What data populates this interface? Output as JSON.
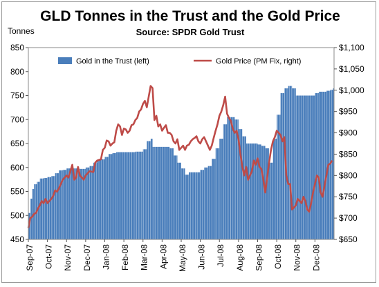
{
  "chart_data": {
    "type": "bar+line",
    "title": "GLD Tonnes in the Trust and the Gold Price",
    "subtitle": "Source: SPDR Gold Trust",
    "y_left_label": "Tonnes",
    "y_left_lim": [
      450,
      850
    ],
    "y_left_ticks": [
      "450",
      "500",
      "550",
      "600",
      "650",
      "700",
      "750",
      "800",
      "850"
    ],
    "y_right_lim": [
      650,
      1100
    ],
    "y_right_ticks": [
      "$650",
      "$700",
      "$750",
      "$800",
      "$850",
      "$900",
      "$950",
      "$1,000",
      "$1,050",
      "$1,100"
    ],
    "x_ticks": [
      "Sep-07",
      "Oct-07",
      "Nov-07",
      "Dec-07",
      "Jan-08",
      "Feb-08",
      "Mar-08",
      "Apr-08",
      "May-08",
      "Jun-08",
      "Jul-08",
      "Aug-08",
      "Sep-08",
      "Oct-08",
      "Nov-08",
      "Dec-08"
    ],
    "x_range": [
      0,
      16.0
    ],
    "legend": {
      "position": "top",
      "items": [
        "Gold in the Trust (left)",
        "Gold Price (PM Fix, right)"
      ]
    },
    "grid": false,
    "colors": {
      "bars": "#4a7ebb",
      "line": "#be4b48"
    },
    "series": [
      {
        "name": "Gold in the Trust (left)",
        "axis": "left",
        "type": "bar",
        "points": [
          [
            0.0,
            505
          ],
          [
            0.1,
            535
          ],
          [
            0.2,
            555
          ],
          [
            0.3,
            565
          ],
          [
            0.45,
            570
          ],
          [
            0.6,
            577
          ],
          [
            0.8,
            578
          ],
          [
            1.0,
            580
          ],
          [
            1.2,
            582
          ],
          [
            1.4,
            588
          ],
          [
            1.6,
            594
          ],
          [
            1.8,
            595
          ],
          [
            2.0,
            598
          ],
          [
            2.2,
            598
          ],
          [
            2.4,
            598
          ],
          [
            2.6,
            597
          ],
          [
            2.8,
            597
          ],
          [
            3.0,
            600
          ],
          [
            3.2,
            603
          ],
          [
            3.4,
            610
          ],
          [
            3.6,
            616
          ],
          [
            3.8,
            617
          ],
          [
            4.0,
            622
          ],
          [
            4.2,
            628
          ],
          [
            4.4,
            630
          ],
          [
            4.6,
            632
          ],
          [
            4.8,
            632
          ],
          [
            5.0,
            632
          ],
          [
            5.2,
            632
          ],
          [
            5.4,
            632
          ],
          [
            5.6,
            633
          ],
          [
            5.8,
            633
          ],
          [
            6.0,
            638
          ],
          [
            6.2,
            655
          ],
          [
            6.4,
            660
          ],
          [
            6.5,
            643
          ],
          [
            6.6,
            643
          ],
          [
            6.8,
            643
          ],
          [
            7.0,
            643
          ],
          [
            7.2,
            643
          ],
          [
            7.4,
            640
          ],
          [
            7.6,
            625
          ],
          [
            7.8,
            610
          ],
          [
            8.0,
            598
          ],
          [
            8.2,
            585
          ],
          [
            8.4,
            590
          ],
          [
            8.6,
            590
          ],
          [
            8.8,
            590
          ],
          [
            9.0,
            595
          ],
          [
            9.2,
            600
          ],
          [
            9.4,
            603
          ],
          [
            9.6,
            618
          ],
          [
            9.8,
            640
          ],
          [
            10.0,
            660
          ],
          [
            10.2,
            690
          ],
          [
            10.4,
            705
          ],
          [
            10.6,
            705
          ],
          [
            10.8,
            700
          ],
          [
            11.0,
            680
          ],
          [
            11.2,
            665
          ],
          [
            11.4,
            650
          ],
          [
            11.6,
            650
          ],
          [
            11.8,
            650
          ],
          [
            12.0,
            648
          ],
          [
            12.2,
            645
          ],
          [
            12.4,
            640
          ],
          [
            12.6,
            610
          ],
          [
            12.8,
            660
          ],
          [
            13.0,
            710
          ],
          [
            13.2,
            755
          ],
          [
            13.4,
            765
          ],
          [
            13.6,
            770
          ],
          [
            13.8,
            765
          ],
          [
            14.0,
            750
          ],
          [
            14.2,
            750
          ],
          [
            14.4,
            750
          ],
          [
            14.6,
            750
          ],
          [
            14.8,
            750
          ],
          [
            15.0,
            755
          ],
          [
            15.2,
            758
          ],
          [
            15.4,
            758
          ],
          [
            15.6,
            760
          ],
          [
            15.8,
            762
          ],
          [
            15.95,
            765
          ]
        ]
      },
      {
        "name": "Gold Price (PM Fix, right)",
        "axis": "right",
        "type": "line",
        "points": [
          [
            0.0,
            677
          ],
          [
            0.1,
            700
          ],
          [
            0.2,
            703
          ],
          [
            0.3,
            710
          ],
          [
            0.4,
            712
          ],
          [
            0.5,
            722
          ],
          [
            0.6,
            730
          ],
          [
            0.7,
            740
          ],
          [
            0.8,
            735
          ],
          [
            0.9,
            745
          ],
          [
            1.0,
            735
          ],
          [
            1.1,
            740
          ],
          [
            1.2,
            745
          ],
          [
            1.3,
            752
          ],
          [
            1.4,
            765
          ],
          [
            1.5,
            762
          ],
          [
            1.6,
            770
          ],
          [
            1.7,
            780
          ],
          [
            1.8,
            790
          ],
          [
            1.9,
            795
          ],
          [
            2.0,
            800
          ],
          [
            2.1,
            795
          ],
          [
            2.2,
            810
          ],
          [
            2.3,
            825
          ],
          [
            2.4,
            790
          ],
          [
            2.5,
            795
          ],
          [
            2.6,
            820
          ],
          [
            2.7,
            800
          ],
          [
            2.8,
            795
          ],
          [
            2.9,
            790
          ],
          [
            3.0,
            800
          ],
          [
            3.2,
            810
          ],
          [
            3.4,
            808
          ],
          [
            3.5,
            830
          ],
          [
            3.6,
            835
          ],
          [
            3.8,
            838
          ],
          [
            3.9,
            860
          ],
          [
            4.0,
            865
          ],
          [
            4.1,
            882
          ],
          [
            4.2,
            880
          ],
          [
            4.3,
            870
          ],
          [
            4.4,
            875
          ],
          [
            4.5,
            878
          ],
          [
            4.6,
            905
          ],
          [
            4.7,
            920
          ],
          [
            4.8,
            915
          ],
          [
            4.9,
            895
          ],
          [
            5.0,
            910
          ],
          [
            5.1,
            908
          ],
          [
            5.2,
            900
          ],
          [
            5.3,
            905
          ],
          [
            5.4,
            918
          ],
          [
            5.5,
            920
          ],
          [
            5.6,
            930
          ],
          [
            5.7,
            935
          ],
          [
            5.8,
            950
          ],
          [
            5.9,
            955
          ],
          [
            6.0,
            968
          ],
          [
            6.1,
            975
          ],
          [
            6.2,
            960
          ],
          [
            6.3,
            985
          ],
          [
            6.4,
            1010
          ],
          [
            6.5,
            1005
          ],
          [
            6.6,
            930
          ],
          [
            6.7,
            940
          ],
          [
            6.8,
            915
          ],
          [
            6.9,
            920
          ],
          [
            7.0,
            905
          ],
          [
            7.1,
            912
          ],
          [
            7.2,
            918
          ],
          [
            7.3,
            900
          ],
          [
            7.4,
            900
          ],
          [
            7.5,
            895
          ],
          [
            7.6,
            880
          ],
          [
            7.7,
            875
          ],
          [
            7.8,
            885
          ],
          [
            7.9,
            860
          ],
          [
            8.0,
            865
          ],
          [
            8.1,
            870
          ],
          [
            8.2,
            860
          ],
          [
            8.3,
            870
          ],
          [
            8.4,
            872
          ],
          [
            8.5,
            880
          ],
          [
            8.6,
            885
          ],
          [
            8.7,
            888
          ],
          [
            8.8,
            892
          ],
          [
            8.9,
            880
          ],
          [
            9.0,
            875
          ],
          [
            9.1,
            885
          ],
          [
            9.2,
            890
          ],
          [
            9.3,
            880
          ],
          [
            9.4,
            870
          ],
          [
            9.5,
            860
          ],
          [
            9.6,
            870
          ],
          [
            9.7,
            888
          ],
          [
            9.8,
            905
          ],
          [
            9.9,
            920
          ],
          [
            10.0,
            940
          ],
          [
            10.1,
            950
          ],
          [
            10.2,
            965
          ],
          [
            10.3,
            985
          ],
          [
            10.4,
            945
          ],
          [
            10.5,
            935
          ],
          [
            10.6,
            928
          ],
          [
            10.7,
            910
          ],
          [
            10.8,
            900
          ],
          [
            10.9,
            905
          ],
          [
            11.0,
            885
          ],
          [
            11.1,
            850
          ],
          [
            11.2,
            820
          ],
          [
            11.3,
            800
          ],
          [
            11.4,
            820
          ],
          [
            11.5,
            790
          ],
          [
            11.6,
            800
          ],
          [
            11.7,
            810
          ],
          [
            11.8,
            835
          ],
          [
            11.9,
            825
          ],
          [
            12.0,
            840
          ],
          [
            12.1,
            820
          ],
          [
            12.2,
            815
          ],
          [
            12.3,
            790
          ],
          [
            12.4,
            760
          ],
          [
            12.5,
            795
          ],
          [
            12.6,
            830
          ],
          [
            12.7,
            860
          ],
          [
            12.8,
            880
          ],
          [
            12.9,
            890
          ],
          [
            13.0,
            905
          ],
          [
            13.1,
            900
          ],
          [
            13.2,
            895
          ],
          [
            13.3,
            880
          ],
          [
            13.4,
            890
          ],
          [
            13.5,
            800
          ],
          [
            13.6,
            780
          ],
          [
            13.7,
            780
          ],
          [
            13.8,
            720
          ],
          [
            13.9,
            725
          ],
          [
            14.0,
            730
          ],
          [
            14.1,
            745
          ],
          [
            14.2,
            740
          ],
          [
            14.3,
            735
          ],
          [
            14.4,
            750
          ],
          [
            14.5,
            740
          ],
          [
            14.6,
            720
          ],
          [
            14.7,
            715
          ],
          [
            14.8,
            735
          ],
          [
            14.9,
            760
          ],
          [
            15.0,
            780
          ],
          [
            15.1,
            800
          ],
          [
            15.2,
            795
          ],
          [
            15.3,
            760
          ],
          [
            15.4,
            750
          ],
          [
            15.5,
            775
          ],
          [
            15.6,
            800
          ],
          [
            15.7,
            825
          ],
          [
            15.8,
            828
          ],
          [
            15.9,
            835
          ]
        ]
      }
    ]
  }
}
